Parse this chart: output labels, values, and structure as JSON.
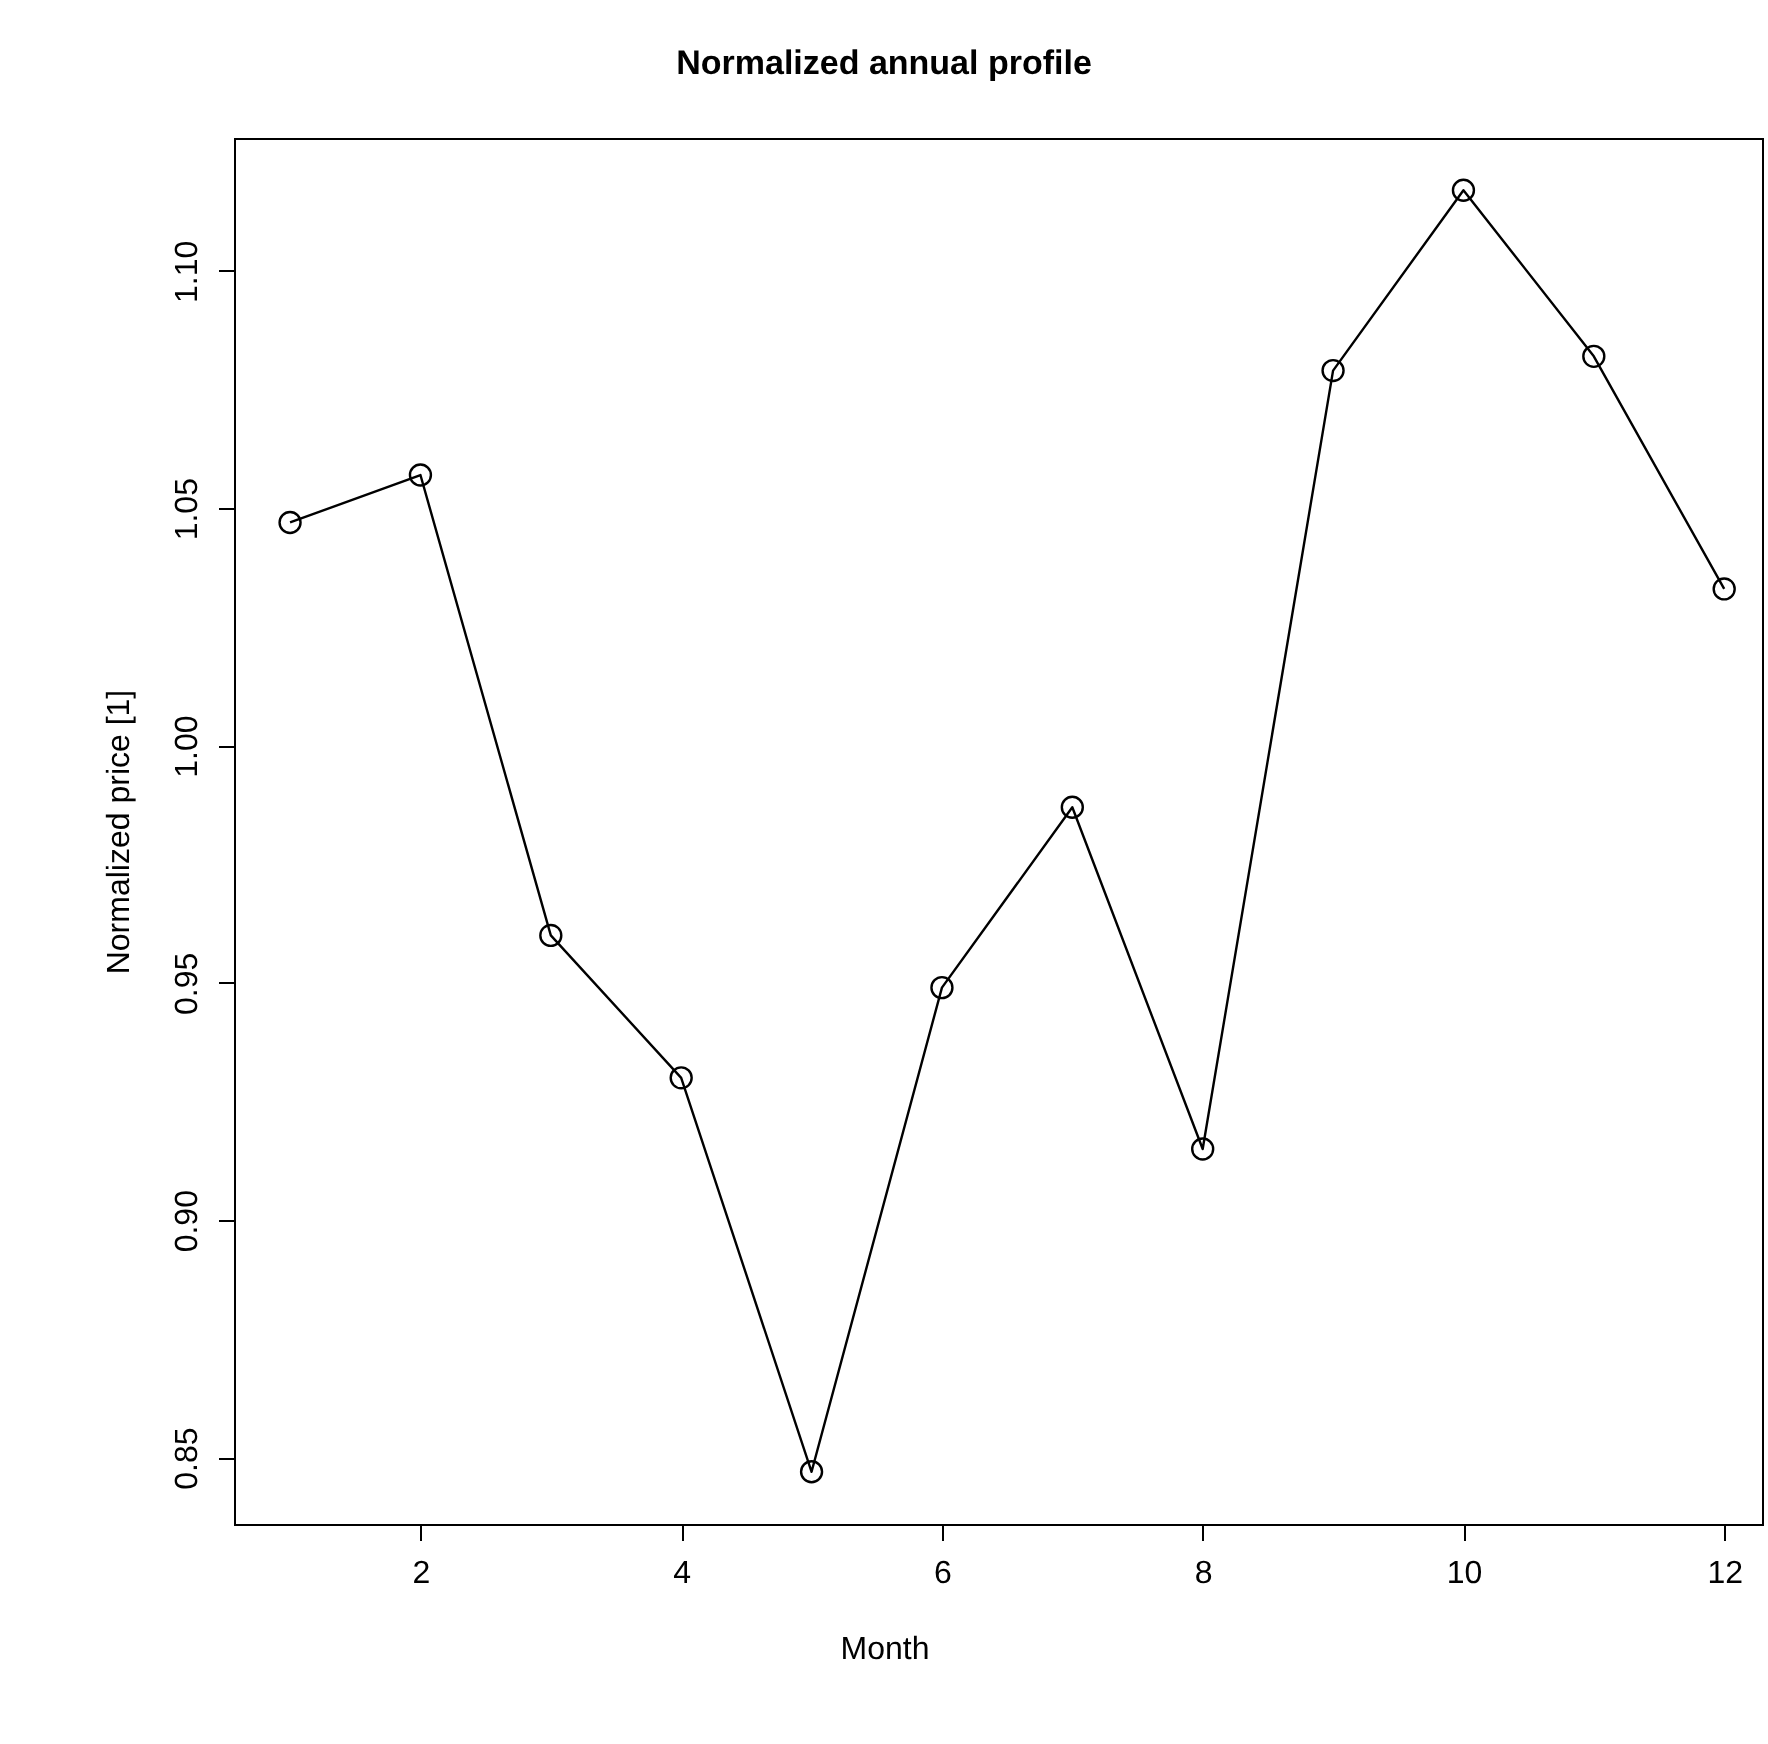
{
  "chart_data": {
    "type": "line",
    "title": "Normalized annual profile",
    "xlabel": "Month",
    "ylabel": "Normalized price [1]",
    "x": [
      1,
      2,
      3,
      4,
      5,
      6,
      7,
      8,
      9,
      10,
      11,
      12
    ],
    "series": [
      {
        "color": "#000000",
        "values": [
          1.047,
          1.057,
          0.96,
          0.93,
          0.847,
          0.949,
          0.987,
          0.915,
          1.079,
          1.117,
          1.082,
          1.033
        ]
      }
    ],
    "xlim": [
      0.57,
      12.29
    ],
    "xticks": [
      2,
      4,
      6,
      8,
      10,
      12
    ],
    "ylim": [
      0.836,
      1.128
    ],
    "yticks": [
      0.85,
      {
        "value": 0.9,
        "label": "0.90"
      },
      0.95,
      {
        "value": 1.0,
        "label": "1.00"
      },
      1.05,
      {
        "value": 1.1,
        "label": "1.10"
      }
    ],
    "marker": "circle",
    "line_style": "solid",
    "grid": false
  }
}
